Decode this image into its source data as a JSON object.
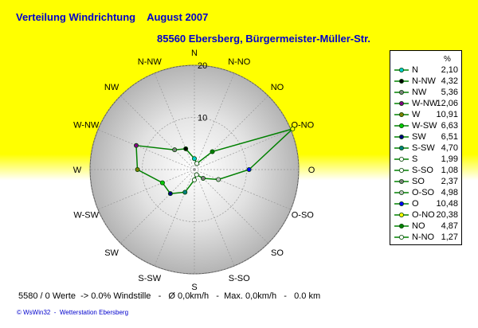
{
  "header": {
    "title": "Verteilung Windrichtung    August 2007",
    "station": "85560 Ebersberg, Bürgermeister-Müller-Str."
  },
  "footer": {
    "info": "5580 / 0 Werte  -> 0.0% Windstille   -   Ø 0,0km/h   -  Max. 0,0km/h   -   0.0 km",
    "credit": "© WsWin32  -  Wetterstation Ebersberg"
  },
  "legend": {
    "unit": "%"
  },
  "colors": {
    "background_top": "#ffff00",
    "background_bottom": "#ffffff",
    "polygon_line": "#008000",
    "grid": "#999999"
  },
  "chart_data": {
    "type": "radar",
    "title": "Verteilung Windrichtung    August 2007",
    "unit": "%",
    "r_ticks": [
      10,
      20
    ],
    "rmax": 20,
    "directions": [
      "N",
      "N-NO",
      "NO",
      "O-NO",
      "O",
      "O-SO",
      "SO",
      "S-SO",
      "S",
      "S-SW",
      "SW",
      "W-SW",
      "W",
      "W-NW",
      "NW",
      "N-NW"
    ],
    "legend_order": [
      "N",
      "N-NW",
      "NW",
      "W-NW",
      "W",
      "W-SW",
      "SW",
      "S-SW",
      "S",
      "S-SO",
      "SO",
      "O-SO",
      "O",
      "O-NO",
      "NO",
      "N-NO"
    ],
    "values": {
      "N": "2,10",
      "N-NW": "4,32",
      "NW": "5,36",
      "W-NW": "12,06",
      "W": "10,91",
      "W-SW": "6,63",
      "SW": "6,51",
      "S-SW": "4,70",
      "S": "1,99",
      "S-SO": "1,08",
      "SO": "2,37",
      "O-SO": "4,98",
      "O": "10,48",
      "O-NO": "20,38",
      "NO": "4,87",
      "N-NO": "1,27"
    },
    "marker_colors": {
      "N": "#00cccc",
      "N-NW": "#000000",
      "NW": "#808080",
      "W-NW": "#800080",
      "W": "#808000",
      "W-SW": "#00cc00",
      "SW": "#000080",
      "S-SW": "#008080",
      "S": "#ffffff",
      "S-SO": "#ffffff",
      "SO": "#808080",
      "O-SO": "#c0c0c0",
      "O": "#0000ff",
      "O-NO": "#ffff00",
      "NO": "#008000",
      "N-NO": "#ffffff"
    }
  }
}
